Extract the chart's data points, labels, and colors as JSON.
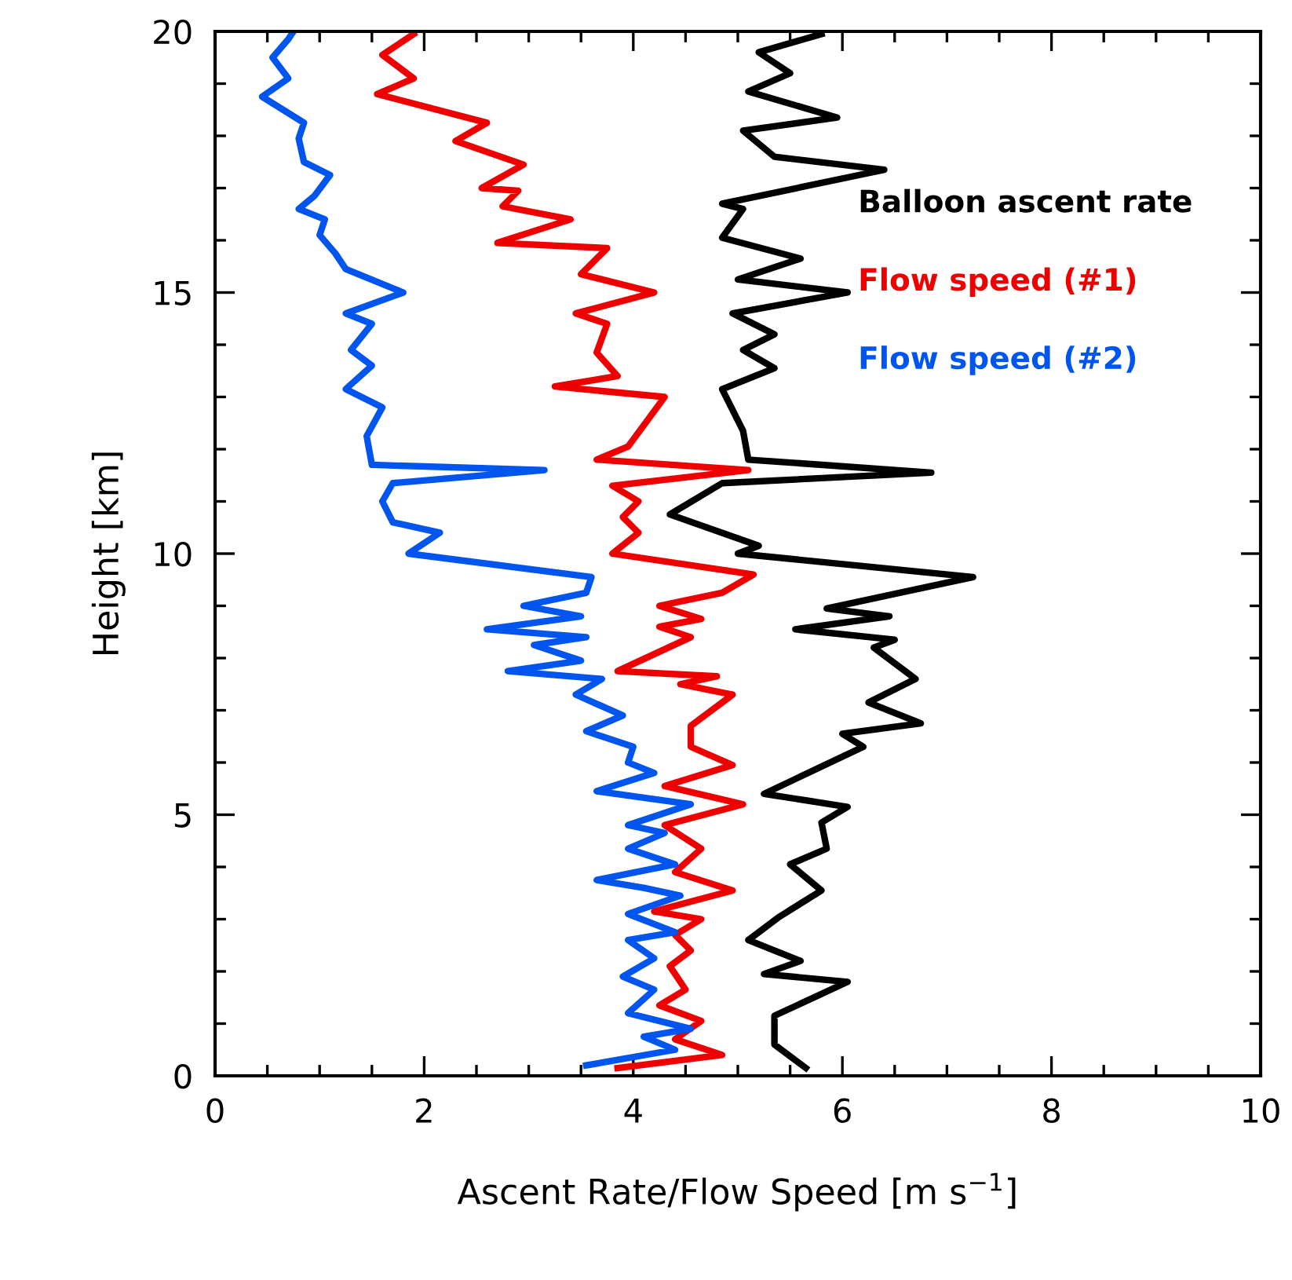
{
  "chart_data": {
    "type": "line",
    "xlabel": "Ascent Rate/Flow Speed [m s$^{−1}$]",
    "ylabel": "Height [km]",
    "xlim": [
      0,
      10
    ],
    "ylim": [
      0,
      20
    ],
    "xticks": [
      0,
      2,
      4,
      6,
      8,
      10
    ],
    "yticks": [
      0,
      5,
      10,
      15,
      20
    ],
    "grid": false,
    "legend": "right",
    "marker": "none",
    "line_style": "solid",
    "series": [
      {
        "name": "Balloon ascent rate",
        "color": "#000000",
        "x": [
          5.65,
          5.35,
          5.35,
          5.35,
          6.05,
          5.25,
          5.6,
          5.1,
          5.4,
          5.8,
          5.5,
          5.85,
          5.8,
          6.05,
          5.25,
          6.2,
          6.0,
          6.75,
          6.25,
          6.7,
          6.3,
          6.5,
          5.55,
          6.45,
          5.85,
          7.25,
          5.0,
          5.2,
          4.35,
          4.85,
          6.85,
          5.1,
          5.05,
          4.85,
          5.35,
          5.05,
          5.35,
          4.95,
          6.05,
          5.0,
          5.6,
          4.85,
          5.05,
          4.85,
          6.4,
          5.35,
          5.05,
          5.95,
          5.1,
          5.5,
          5.2,
          5.8
        ],
        "values": [
          0.15,
          0.6,
          0.75,
          1.15,
          1.8,
          1.95,
          2.2,
          2.6,
          3.05,
          3.55,
          4.05,
          4.35,
          4.85,
          5.15,
          5.4,
          6.3,
          6.55,
          6.75,
          7.15,
          7.6,
          8.2,
          8.35,
          8.55,
          8.8,
          8.95,
          9.55,
          10.0,
          10.15,
          10.75,
          11.35,
          11.55,
          11.8,
          12.35,
          13.15,
          13.55,
          13.9,
          14.2,
          14.6,
          15.0,
          15.25,
          15.65,
          16.05,
          16.6,
          16.7,
          17.35,
          17.6,
          18.1,
          18.35,
          18.85,
          19.2,
          19.6,
          19.95
        ]
      },
      {
        "name": "Flow speed (#1)",
        "color": "#ee0000",
        "x": [
          3.85,
          4.85,
          4.4,
          4.65,
          4.25,
          4.5,
          4.35,
          4.55,
          4.4,
          4.65,
          4.2,
          4.95,
          4.4,
          4.65,
          4.3,
          5.05,
          4.3,
          4.95,
          4.55,
          4.55,
          4.95,
          4.45,
          4.8,
          3.85,
          4.55,
          4.25,
          4.65,
          4.25,
          4.85,
          5.15,
          3.8,
          4.05,
          3.9,
          4.05,
          3.8,
          5.1,
          3.65,
          3.95,
          4.3,
          3.25,
          3.85,
          3.65,
          3.75,
          3.45,
          4.2,
          3.5,
          3.75,
          2.7,
          3.4,
          2.75,
          2.9,
          2.55,
          2.95,
          2.3,
          2.6,
          1.55,
          1.9,
          1.6,
          1.9
        ],
        "values": [
          0.15,
          0.4,
          0.7,
          1.05,
          1.35,
          1.65,
          2.1,
          2.4,
          2.7,
          3.0,
          3.15,
          3.55,
          3.9,
          4.35,
          4.8,
          5.2,
          5.55,
          5.95,
          6.3,
          6.7,
          7.3,
          7.5,
          7.65,
          7.75,
          8.4,
          8.6,
          8.75,
          9.0,
          9.25,
          9.6,
          10.0,
          10.4,
          10.7,
          11.0,
          11.3,
          11.6,
          11.8,
          12.05,
          13.0,
          13.2,
          13.4,
          13.85,
          14.4,
          14.6,
          15.0,
          15.35,
          15.85,
          15.95,
          16.4,
          16.65,
          16.95,
          17.0,
          17.45,
          17.9,
          18.25,
          18.8,
          19.1,
          19.55,
          19.95
        ]
      },
      {
        "name": "Flow speed (#2)",
        "color": "#0055ee",
        "x": [
          3.55,
          4.4,
          4.1,
          4.55,
          3.95,
          4.2,
          3.9,
          4.2,
          3.95,
          4.4,
          3.95,
          4.45,
          4.1,
          3.65,
          4.4,
          3.95,
          4.3,
          3.95,
          4.55,
          3.65,
          4.2,
          3.95,
          4.0,
          3.55,
          3.9,
          3.45,
          3.7,
          2.8,
          3.5,
          3.05,
          3.55,
          2.6,
          3.5,
          2.95,
          3.55,
          3.6,
          1.85,
          2.15,
          1.7,
          1.6,
          1.7,
          3.15,
          1.5,
          1.45,
          1.6,
          1.25,
          1.5,
          1.3,
          1.5,
          1.25,
          1.8,
          1.25,
          1.15,
          1.0,
          1.05,
          0.8,
          0.95,
          1.1,
          0.85,
          0.8,
          0.85,
          0.45,
          0.7,
          0.55,
          0.7,
          0.75
        ],
        "values": [
          0.2,
          0.5,
          0.75,
          0.9,
          1.2,
          1.65,
          1.9,
          2.25,
          2.6,
          2.75,
          3.1,
          3.45,
          3.6,
          3.75,
          4.05,
          4.35,
          4.65,
          4.8,
          5.2,
          5.45,
          5.8,
          6.0,
          6.3,
          6.6,
          6.9,
          7.3,
          7.6,
          7.75,
          7.95,
          8.25,
          8.4,
          8.55,
          8.8,
          9.0,
          9.25,
          9.55,
          10.0,
          10.4,
          10.6,
          11.0,
          11.35,
          11.6,
          11.7,
          12.25,
          12.8,
          13.15,
          13.6,
          13.9,
          14.4,
          14.6,
          15.0,
          15.45,
          15.75,
          16.1,
          16.4,
          16.6,
          16.85,
          17.25,
          17.5,
          17.95,
          18.25,
          18.75,
          19.1,
          19.5,
          19.85,
          20.0
        ]
      }
    ]
  }
}
